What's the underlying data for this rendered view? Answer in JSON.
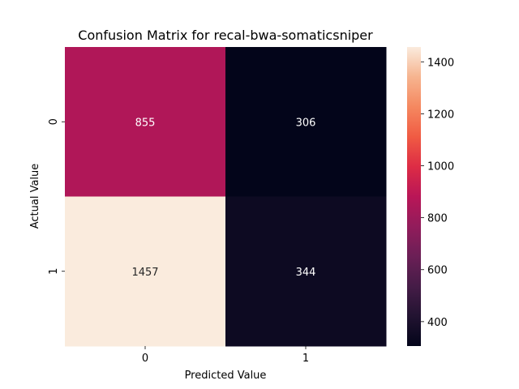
{
  "chart_data": {
    "type": "heatmap",
    "title": "Confusion Matrix for recal-bwa-somaticsniper",
    "xlabel": "Predicted Value",
    "ylabel": "Actual Value",
    "x_tick_labels": [
      "0",
      "1"
    ],
    "y_tick_labels": [
      "0",
      "1"
    ],
    "values": [
      [
        855,
        306
      ],
      [
        1457,
        344
      ]
    ],
    "cell_labels": [
      [
        "855",
        "306"
      ],
      [
        "1457",
        "344"
      ]
    ],
    "colorbar": {
      "range": [
        306,
        1457
      ],
      "ticks": [
        400,
        600,
        800,
        1000,
        1200,
        1400
      ],
      "tick_labels": [
        "400",
        "600",
        "800",
        "1000",
        "1200",
        "1400"
      ],
      "colormap": "rocket"
    }
  }
}
